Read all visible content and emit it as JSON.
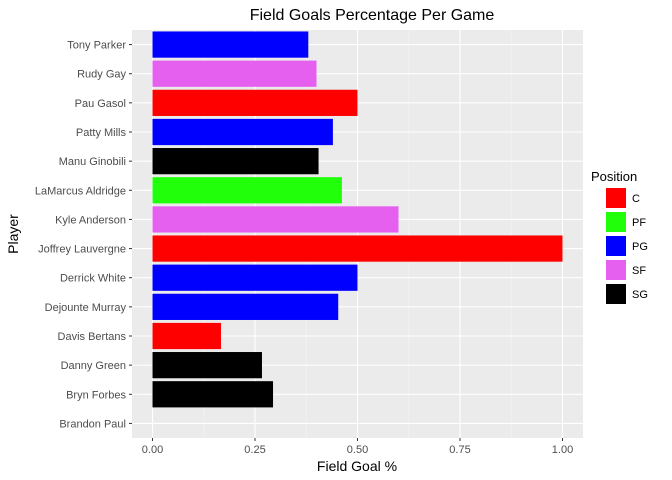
{
  "chart_data": {
    "type": "bar",
    "orientation": "horizontal",
    "title": "Field Goals Percentage Per Game",
    "xlabel": "Field Goal %",
    "ylabel": "Player",
    "xlim": [
      -0.05,
      1.05
    ],
    "x_ticks": [
      0.0,
      0.25,
      0.5,
      0.75,
      1.0
    ],
    "x_tick_labels": [
      "0.00",
      "0.25",
      "0.50",
      "0.75",
      "1.00"
    ],
    "grid": true,
    "legend_placement": "right",
    "legend_title": "Position",
    "legend": [
      {
        "label": "C",
        "color": "#FF0000"
      },
      {
        "label": "PF",
        "color": "#22FF0A"
      },
      {
        "label": "PG",
        "color": "#0000FF"
      },
      {
        "label": "SF",
        "color": "#E660F0"
      },
      {
        "label": "SG",
        "color": "#000000"
      }
    ],
    "categories": [
      "Tony Parker",
      "Rudy Gay",
      "Pau Gasol",
      "Patty Mills",
      "Manu Ginobili",
      "LaMarcus Aldridge",
      "Kyle Anderson",
      "Joffrey Lauvergne",
      "Derrick White",
      "Dejounte Murray",
      "Davis Bertans",
      "Danny Green",
      "Bryn Forbes",
      "Brandon Paul"
    ],
    "values": [
      0.38,
      0.4,
      0.5,
      0.44,
      0.405,
      0.462,
      0.6,
      1.0,
      0.5,
      0.453,
      0.167,
      0.267,
      0.294,
      0.0
    ],
    "positions": [
      "PG",
      "SF",
      "C",
      "PG",
      "SG",
      "PF",
      "SF",
      "C",
      "PG",
      "PG",
      "C",
      "SG",
      "SG",
      "SG"
    ]
  }
}
